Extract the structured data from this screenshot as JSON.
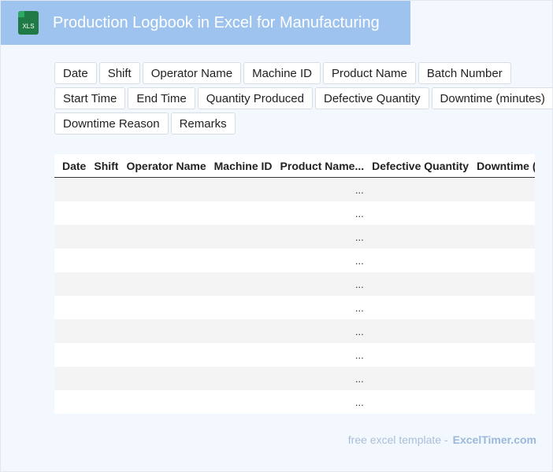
{
  "header": {
    "icon": "XLS",
    "title": "Production Logbook in Excel for Manufacturing"
  },
  "fields": [
    "Date",
    "Shift",
    "Operator Name",
    "Machine ID",
    "Product Name",
    "Batch Number",
    "Start Time",
    "End Time",
    "Quantity Produced",
    "Defective Quantity",
    "Downtime (minutes)",
    "Downtime Reason",
    "Remarks"
  ],
  "table": {
    "columns": [
      "Date",
      "Shift",
      "Operator Name",
      "Machine ID",
      "Product Name",
      "...",
      "Defective Quantity",
      "Downtime (minutes)"
    ],
    "ellipsis_column": 5,
    "rows": [
      "...",
      "...",
      "...",
      "...",
      "...",
      "...",
      "...",
      "...",
      "...",
      "..."
    ]
  },
  "footer": {
    "text": "free excel template -",
    "brand": "ExcelTimer.com"
  }
}
